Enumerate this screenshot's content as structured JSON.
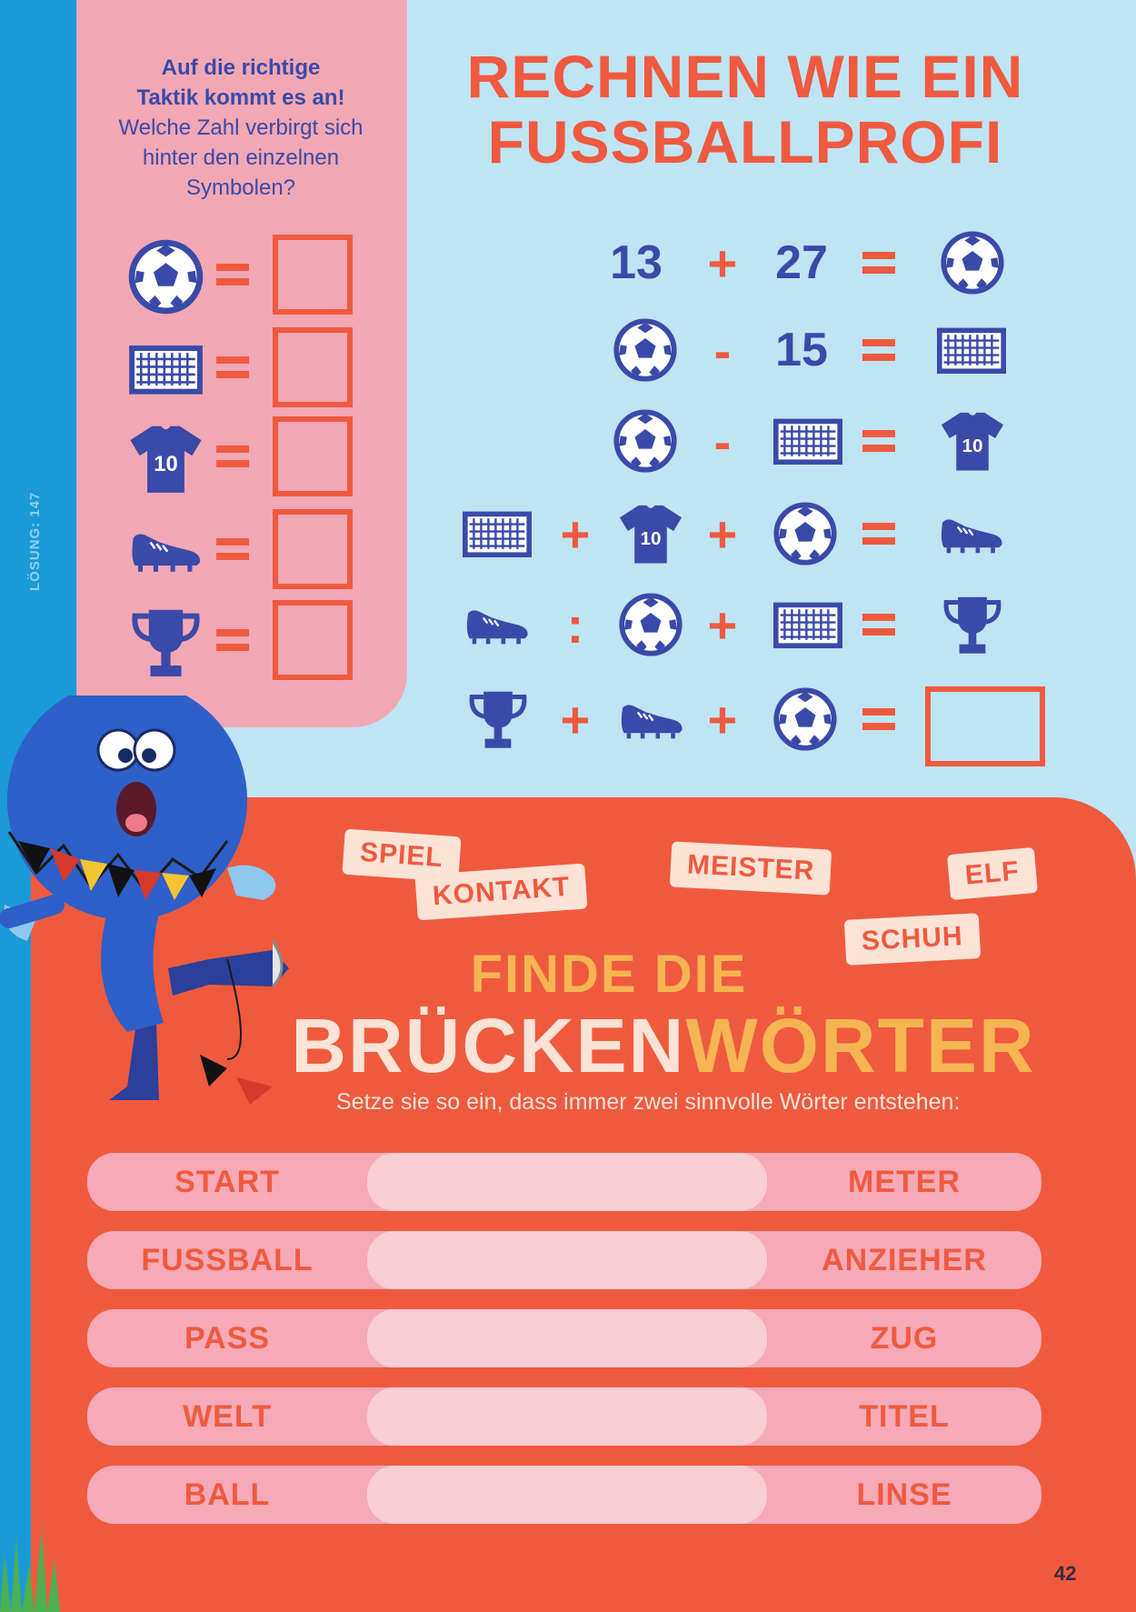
{
  "solution_label": "LÖSUNG: 147",
  "intro": {
    "bold1": "Auf die richtige",
    "bold2": "Taktik kommt es an!",
    "text": "Welche Zahl verbirgt sich hinter den einzelnen Symbolen?"
  },
  "title": {
    "line1": "RECHNEN WIE EIN",
    "line2": "FUSSBALLPROFI"
  },
  "legend": [
    "ball-icon",
    "goal-icon",
    "jersey-icon",
    "boot-icon",
    "trophy-icon"
  ],
  "jersey_number": "10",
  "equations": [
    [
      "13",
      "+",
      "27",
      "=",
      "ball"
    ],
    [
      "ball",
      "-",
      "15",
      "=",
      "goal"
    ],
    [
      "ball",
      "-",
      "goal",
      "=",
      "jersey"
    ],
    [
      "goal",
      "+",
      "jersey",
      "+",
      "ball",
      "=",
      "boot"
    ],
    [
      "boot",
      ":",
      "ball",
      "+",
      "goal",
      "=",
      "trophy"
    ],
    [
      "trophy",
      "+",
      "boot",
      "+",
      "ball",
      "=",
      "box"
    ]
  ],
  "tags": [
    "SPIEL",
    "KONTAKT",
    "MEISTER",
    "ELF",
    "SCHUH"
  ],
  "find": {
    "line1": "FINDE DIE",
    "line2a": "BRÜCKEN",
    "line2b": "WÖRTER",
    "sub": "Setze sie so ein, dass immer zwei sinnvolle Wörter entstehen:"
  },
  "word_rows": [
    {
      "left": "START",
      "right": "METER"
    },
    {
      "left": "FUSSBALL",
      "right": "ANZIEHER"
    },
    {
      "left": "PASS",
      "right": "ZUG"
    },
    {
      "left": "WELT",
      "right": "TITEL"
    },
    {
      "left": "BALL",
      "right": "LINSE"
    }
  ],
  "page_number": "42",
  "colors": {
    "navy": "#3a4aa8",
    "red": "#ef5a3f",
    "pink": "#f2a7b4",
    "sky": "#bfe4f4",
    "gold": "#f7b552"
  }
}
